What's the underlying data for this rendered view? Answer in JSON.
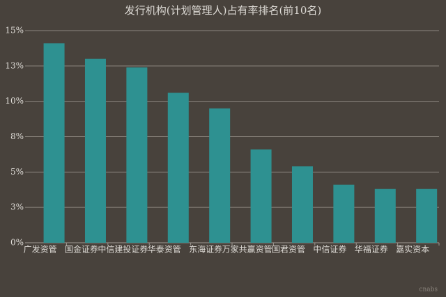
{
  "chart_data": {
    "type": "bar",
    "title": "发行机构(计划管理人)占有率排名(前10名)",
    "categories": [
      "广发资管",
      "国金证券",
      "中信建投证券",
      "华泰资管",
      "东海证券",
      "万家共赢资管",
      "国君资管",
      "中信证券",
      "华福证券",
      "嘉实资本"
    ],
    "values": [
      14.1,
      13.0,
      12.4,
      10.6,
      9.5,
      6.6,
      5.4,
      4.1,
      3.8,
      3.8
    ],
    "color": "#2e9191",
    "ylim": [
      0,
      15
    ],
    "yticks": [
      {
        "value": 0,
        "label": "0%"
      },
      {
        "value": 2.5,
        "label": "3%"
      },
      {
        "value": 5,
        "label": "5%"
      },
      {
        "value": 7.5,
        "label": "8%"
      },
      {
        "value": 10,
        "label": "10%"
      },
      {
        "value": 12.5,
        "label": "13%"
      },
      {
        "value": 15,
        "label": "15%"
      }
    ],
    "grid": true,
    "watermark": "cnabs"
  }
}
